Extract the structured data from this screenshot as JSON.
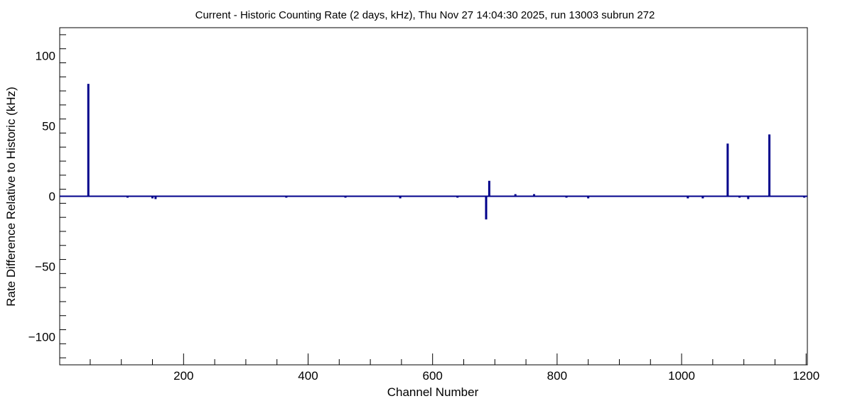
{
  "chart_data": {
    "type": "bar",
    "title": "Current - Historic Counting Rate (2 days, kHz), Thu Nov 27 14:04:30 2025, run 13003 subrun 272",
    "xlabel": "Channel Number",
    "ylabel": "Rate Difference Relative to Historic (kHz)",
    "xlim": [
      1,
      1202
    ],
    "ylim": [
      -120,
      120
    ],
    "x_ticks": [
      200,
      400,
      600,
      800,
      1000,
      1200
    ],
    "y_ticks": [
      -100,
      -50,
      0,
      50,
      100
    ],
    "grid": false,
    "legend": "none",
    "color": "#00008b",
    "series": [
      {
        "x": [
          47,
          110,
          150,
          155,
          170,
          365,
          460,
          548,
          640,
          686,
          691,
          733,
          763,
          780,
          815,
          850,
          885,
          1010,
          1034,
          1074,
          1093,
          1107,
          1141,
          1197
        ],
        "values": [
          80,
          -1,
          -1.5,
          -2,
          0.5,
          -1,
          -1,
          -1.5,
          -1,
          -16.5,
          11,
          1.5,
          1.5,
          0.5,
          -1,
          -1.5,
          0.5,
          -1.5,
          -1.5,
          37.5,
          -1,
          -2,
          44,
          -1
        ]
      }
    ]
  }
}
